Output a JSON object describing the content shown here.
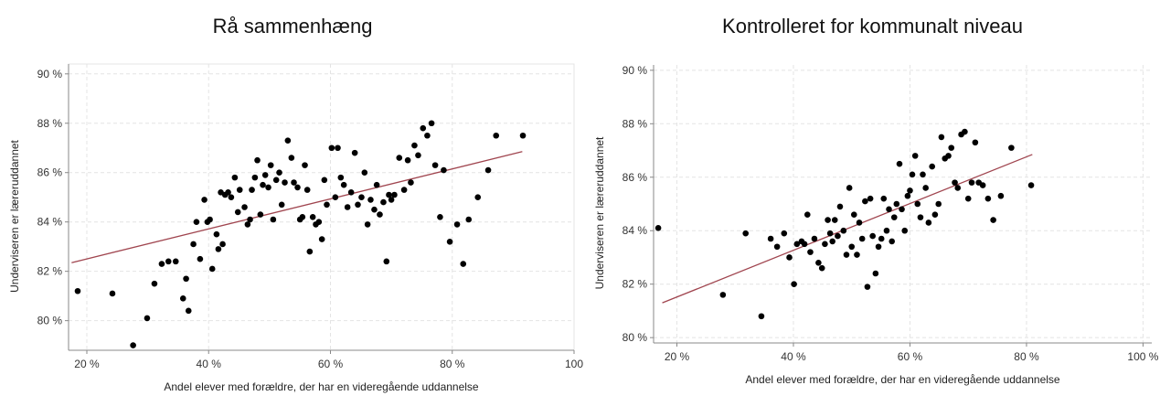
{
  "chart_data": [
    {
      "type": "scatter",
      "title": "Rå sammenhæng",
      "xlabel": "Andel elever med forældre, der har en videregående uddannelse",
      "ylabel": "Underviseren er læreruddannet",
      "xlim": [
        17,
        100
      ],
      "ylim": [
        78.8,
        90.4
      ],
      "xticks": [
        20,
        40,
        60,
        80,
        100
      ],
      "xtick_labels": [
        "20 %",
        "40 %",
        "60 %",
        "80 %",
        "100"
      ],
      "yticks": [
        80,
        82,
        84,
        86,
        88,
        90
      ],
      "ytick_labels": [
        "80 %",
        "82 %",
        "84 %",
        "86 %",
        "88 %",
        "90 %"
      ],
      "grid": true,
      "fit_line": {
        "x": [
          17.5,
          91.5
        ],
        "y": [
          82.35,
          86.85
        ],
        "color": "#a0454f"
      },
      "x": [
        18.5,
        24.2,
        27.6,
        29.9,
        31.1,
        32.3,
        33.4,
        34.6,
        35.8,
        36.3,
        36.7,
        37.5,
        38.0,
        38.6,
        39.3,
        39.8,
        40.2,
        40.6,
        41.3,
        41.6,
        42.0,
        42.3,
        42.7,
        43.2,
        43.7,
        44.3,
        44.8,
        45.1,
        45.9,
        46.4,
        46.8,
        47.1,
        47.6,
        48.0,
        48.5,
        48.9,
        49.3,
        49.8,
        50.2,
        50.6,
        51.1,
        51.6,
        52.0,
        52.5,
        53.0,
        53.6,
        54.0,
        54.6,
        55.0,
        55.4,
        55.8,
        56.2,
        56.6,
        57.1,
        57.6,
        58.1,
        58.6,
        59.0,
        59.4,
        60.2,
        60.8,
        61.2,
        61.7,
        62.2,
        62.8,
        63.4,
        64.0,
        64.5,
        65.1,
        65.6,
        66.1,
        66.6,
        67.2,
        67.6,
        68.1,
        68.7,
        69.2,
        69.6,
        70.0,
        70.5,
        71.3,
        72.1,
        72.7,
        73.2,
        73.8,
        74.4,
        75.2,
        75.9,
        76.6,
        77.2,
        78.0,
        78.6,
        79.6,
        80.8,
        81.8,
        82.7,
        84.2,
        85.9,
        87.2,
        91.6
      ],
      "y": [
        81.2,
        81.1,
        79.0,
        80.1,
        81.5,
        82.3,
        82.4,
        82.4,
        80.9,
        81.7,
        80.4,
        83.1,
        84.0,
        82.5,
        84.9,
        84.0,
        84.1,
        82.1,
        83.5,
        82.9,
        85.2,
        83.1,
        85.1,
        85.2,
        85.0,
        85.8,
        84.4,
        85.3,
        84.6,
        83.9,
        84.1,
        85.3,
        85.8,
        86.5,
        84.3,
        85.5,
        85.9,
        85.4,
        86.3,
        84.1,
        85.7,
        86.0,
        84.7,
        85.6,
        87.3,
        86.6,
        85.6,
        85.4,
        84.1,
        84.2,
        86.3,
        85.3,
        82.8,
        84.2,
        83.9,
        84.0,
        83.3,
        85.7,
        84.7,
        87.0,
        85.0,
        87.0,
        85.8,
        85.5,
        84.6,
        85.2,
        86.8,
        84.7,
        85.0,
        86.0,
        83.9,
        84.9,
        84.5,
        85.5,
        84.3,
        84.8,
        82.4,
        85.1,
        84.9,
        85.1,
        86.6,
        85.3,
        86.5,
        85.6,
        87.1,
        86.7,
        87.8,
        87.5,
        88.0,
        86.3,
        84.2,
        86.1,
        83.2,
        83.9,
        82.3,
        84.1,
        85.0,
        86.1,
        87.5,
        87.5
      ]
    },
    {
      "type": "scatter",
      "title": "Kontrolleret for kommunalt niveau",
      "xlabel": "Andel elever med forældre, der har en videregående uddannelse",
      "ylabel": "Underviseren er læreruddannet",
      "xlim": [
        16,
        101.5
      ],
      "ylim": [
        79.8,
        90.2
      ],
      "xticks": [
        20,
        40,
        60,
        80,
        100
      ],
      "xtick_labels": [
        "20 %",
        "40 %",
        "60 %",
        "80 %",
        "100 %"
      ],
      "yticks": [
        80,
        82,
        84,
        86,
        88,
        90
      ],
      "ytick_labels": [
        "80 %",
        "82 %",
        "84 %",
        "86 %",
        "88 %",
        "90 %"
      ],
      "grid": true,
      "fit_line": {
        "x": [
          17.5,
          81.0
        ],
        "y": [
          81.3,
          86.85
        ],
        "color": "#a0454f"
      },
      "x": [
        16.8,
        27.9,
        31.8,
        34.5,
        36.1,
        37.2,
        38.4,
        39.3,
        40.1,
        40.6,
        41.4,
        41.9,
        42.4,
        42.9,
        43.6,
        44.3,
        44.9,
        45.4,
        45.9,
        46.3,
        46.7,
        47.1,
        47.6,
        48.0,
        48.6,
        49.1,
        49.6,
        50.0,
        50.4,
        50.9,
        51.3,
        51.8,
        52.3,
        52.7,
        53.2,
        53.6,
        54.1,
        54.6,
        55.1,
        55.5,
        56.0,
        56.4,
        56.9,
        57.3,
        57.7,
        58.2,
        58.6,
        59.1,
        59.6,
        60.0,
        60.4,
        60.9,
        61.3,
        61.8,
        62.2,
        62.7,
        63.2,
        63.8,
        64.3,
        64.9,
        65.4,
        66.0,
        66.6,
        67.1,
        67.7,
        68.2,
        68.8,
        69.4,
        70.0,
        70.6,
        71.2,
        71.8,
        72.5,
        73.4,
        74.3,
        75.6,
        77.4,
        80.8
      ],
      "y": [
        84.1,
        81.6,
        83.9,
        80.8,
        83.7,
        83.4,
        83.9,
        83.0,
        82.0,
        83.5,
        83.6,
        83.5,
        84.6,
        83.2,
        83.7,
        82.8,
        82.6,
        83.5,
        84.4,
        83.9,
        83.6,
        84.4,
        83.8,
        84.9,
        84.0,
        83.1,
        85.6,
        83.4,
        84.6,
        83.1,
        84.3,
        83.7,
        85.1,
        81.9,
        85.2,
        83.8,
        82.4,
        83.4,
        83.7,
        85.2,
        84.0,
        84.8,
        83.6,
        84.5,
        85.0,
        86.5,
        84.8,
        84.0,
        85.3,
        85.5,
        86.1,
        86.8,
        85.0,
        84.5,
        86.1,
        85.6,
        84.3,
        86.4,
        84.6,
        85.0,
        87.5,
        86.7,
        86.8,
        87.1,
        85.8,
        85.6,
        87.6,
        87.7,
        85.2,
        85.8,
        87.3,
        85.8,
        85.7,
        85.2,
        84.4,
        85.3,
        87.1,
        85.7
      ]
    }
  ]
}
